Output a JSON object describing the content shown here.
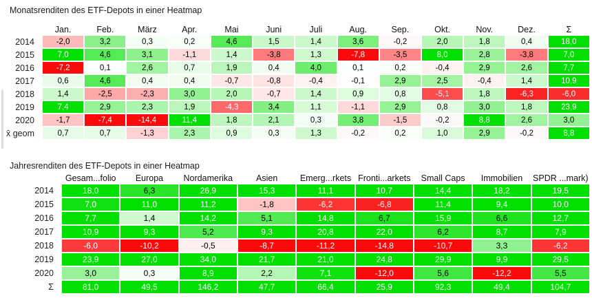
{
  "page": {
    "background": "#ffffff"
  },
  "color_scale": {
    "positive_max": "#00DF00",
    "negative_max": "#FA0A0A",
    "zero": "#FFFFFF",
    "white_text_positive_min": 7,
    "white_text_negative_max": -4
  },
  "chart_data": [
    {
      "type": "heatmap",
      "title": "Monatsrenditen des ETF-Depots in einer Heatmap",
      "columns": [
        "Jan.",
        "Feb.",
        "März",
        "Apr.",
        "Mai",
        "Juni",
        "Juli",
        "Aug.",
        "Sep.",
        "Okt.",
        "Nov.",
        "Dez.",
        "Σ"
      ],
      "rows": [
        {
          "label": "2014",
          "values": [
            -2.0,
            3.2,
            0.3,
            0.2,
            4.6,
            1.5,
            1.4,
            3.6,
            -0.2,
            2.0,
            1.8,
            0.4,
            18.0
          ]
        },
        {
          "label": "2015",
          "values": [
            7.0,
            4.6,
            3.1,
            -1.1,
            1.4,
            -3.8,
            1.3,
            -7.8,
            -3.5,
            8.0,
            2.8,
            -3.8,
            7.0
          ]
        },
        {
          "label": "2016",
          "values": [
            -7.2,
            0.1,
            2.6,
            0.7,
            1.9,
            0.4,
            4.0,
            0.1,
            0.2,
            -0.4,
            2.9,
            2.6,
            7.7
          ]
        },
        {
          "label": "2017",
          "values": [
            0.6,
            4.6,
            0.4,
            0.4,
            -0.7,
            -0.8,
            -0.4,
            -0.1,
            2.9,
            2.5,
            -0.4,
            1.4,
            10.9
          ]
        },
        {
          "label": "2018",
          "values": [
            1.4,
            -2.5,
            -2.3,
            3.0,
            2.0,
            -0.7,
            1.4,
            0.9,
            0.8,
            -5.1,
            1.8,
            -6.3,
            -6.0
          ]
        },
        {
          "label": "2019",
          "values": [
            7.4,
            2.9,
            2.3,
            1.9,
            -4.3,
            3.4,
            1.1,
            -1.1,
            2.9,
            0.8,
            3.0,
            1.8,
            23.9
          ]
        },
        {
          "label": "2020",
          "values": [
            -1.7,
            -7.4,
            -14.4,
            11.4,
            1.8,
            2.1,
            0.3,
            3.8,
            -1.5,
            -0.2,
            8.8,
            2.6,
            3.0
          ]
        },
        {
          "label": "x̄ geom",
          "values": [
            0.7,
            0.7,
            -1.3,
            2.3,
            0.9,
            0.3,
            1.3,
            -0.2,
            0.2,
            1.0,
            2.9,
            -0.2,
            8.8
          ]
        }
      ],
      "saturation_abs": 7,
      "number_format": "comma-decimal-1-digit"
    },
    {
      "type": "heatmap",
      "title": "Jahresrenditen des ETF-Depots in einer Heatmap",
      "columns": [
        "Gesam...folio",
        "Europa",
        "Nordamerika",
        "Asien",
        "Emerg...rkets",
        "Fronti...arkets",
        "Small Caps",
        "Immobilien",
        "SPDR ...mark)"
      ],
      "rows": [
        {
          "label": "2014",
          "values": [
            18.0,
            6.3,
            26.9,
            15.3,
            11.1,
            10.7,
            14.4,
            18.2,
            19.5
          ]
        },
        {
          "label": "2015",
          "values": [
            7.0,
            11.0,
            11.2,
            -1.8,
            -6.2,
            -6.8,
            11.4,
            9.4,
            10.0
          ]
        },
        {
          "label": "2016",
          "values": [
            7.7,
            1.4,
            14.2,
            5.1,
            14.8,
            6.7,
            15.9,
            6.6,
            12.7
          ]
        },
        {
          "label": "2017",
          "values": [
            10.9,
            9.3,
            5.2,
            9.3,
            20.8,
            22.0,
            6.2,
            8.7,
            7.9
          ]
        },
        {
          "label": "2018",
          "values": [
            -6.0,
            -10.2,
            -0.5,
            -8.7,
            -11.2,
            -14.8,
            -10.7,
            3.3,
            -6.2
          ]
        },
        {
          "label": "2019",
          "values": [
            23.9,
            27.0,
            34.0,
            21.7,
            21.0,
            24.8,
            29.9,
            9.9,
            29.5
          ]
        },
        {
          "label": "2020",
          "values": [
            3.0,
            0.3,
            8.9,
            2.2,
            7.1,
            -12.0,
            5.6,
            -12.2,
            5.5
          ]
        },
        {
          "label": "Σ",
          "values": [
            81.0,
            49.5,
            146.2,
            47.7,
            66.4,
            25.9,
            92.3,
            49.4,
            104.7
          ]
        }
      ],
      "saturation_abs": 7.5,
      "number_format": "comma-decimal-1-digit"
    }
  ]
}
